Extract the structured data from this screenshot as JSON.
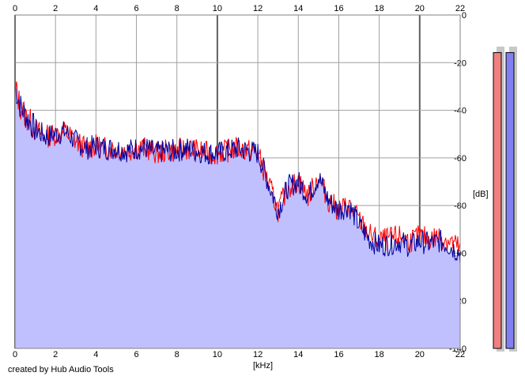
{
  "chart_data": {
    "type": "area",
    "xlabel": "[kHz]",
    "ylabel": "[dB]",
    "xlim": [
      0,
      22
    ],
    "ylim": [
      -140,
      0
    ],
    "x_ticks": [
      "0",
      "2",
      "4",
      "6",
      "8",
      "10",
      "12",
      "14",
      "16",
      "18",
      "20",
      "22"
    ],
    "y_ticks": [
      "0",
      "-20",
      "-40",
      "-60",
      "-80",
      "-100",
      "-120",
      "-140"
    ],
    "grid": true,
    "series": [
      {
        "color": "#ff0000",
        "x": [
          0,
          0.25,
          0.5,
          0.75,
          1,
          1.5,
          2,
          2.5,
          3,
          3.5,
          4,
          4.5,
          5,
          5.5,
          6,
          6.5,
          7,
          7.5,
          8,
          8.5,
          9,
          9.5,
          10,
          10.5,
          11,
          11.5,
          12,
          12.5,
          13,
          13.5,
          14,
          14.5,
          15,
          15.5,
          16,
          16.5,
          17,
          17.5,
          18,
          18.5,
          19,
          19.5,
          20,
          20.5,
          21,
          21.5,
          22
        ],
        "values": [
          -30,
          -38,
          -42,
          -45,
          -48,
          -51,
          -50,
          -49,
          -53,
          -56,
          -55,
          -56,
          -56,
          -57,
          -56,
          -56,
          -58,
          -57,
          -57,
          -56,
          -57,
          -58,
          -58,
          -57,
          -56,
          -57,
          -58,
          -70,
          -82,
          -72,
          -70,
          -76,
          -68,
          -78,
          -82,
          -80,
          -86,
          -92,
          -95,
          -94,
          -93,
          -95,
          -93,
          -94,
          -93,
          -95,
          -98
        ]
      },
      {
        "color": "#0000a0",
        "x": [
          0,
          0.25,
          0.5,
          0.75,
          1,
          1.5,
          2,
          2.5,
          3,
          3.5,
          4,
          4.5,
          5,
          5.5,
          6,
          6.5,
          7,
          7.5,
          8,
          8.5,
          9,
          9.5,
          10,
          10.5,
          11,
          11.5,
          12,
          12.5,
          13,
          13.5,
          14,
          14.5,
          15,
          15.5,
          16,
          16.5,
          17,
          17.5,
          18,
          18.5,
          19,
          19.5,
          20,
          20.5,
          21,
          21.5,
          22
        ],
        "values": [
          -30,
          -38,
          -42,
          -45,
          -48,
          -51,
          -50,
          -49,
          -53,
          -56,
          -55,
          -56,
          -56,
          -57,
          -56,
          -56,
          -58,
          -57,
          -57,
          -56,
          -57,
          -58,
          -58,
          -57,
          -56,
          -57,
          -58,
          -70,
          -82,
          -72,
          -70,
          -76,
          -68,
          -78,
          -82,
          -80,
          -88,
          -94,
          -97,
          -96,
          -95,
          -97,
          -95,
          -96,
          -95,
          -97,
          -100
        ]
      }
    ],
    "fill_color": "#c0c0ff",
    "level_meters": [
      {
        "color": "#f08080",
        "level": 0.97
      },
      {
        "color": "#8080f0",
        "level": 0.97
      }
    ]
  },
  "footer": {
    "credit": "created by Hub Audio Tools"
  }
}
